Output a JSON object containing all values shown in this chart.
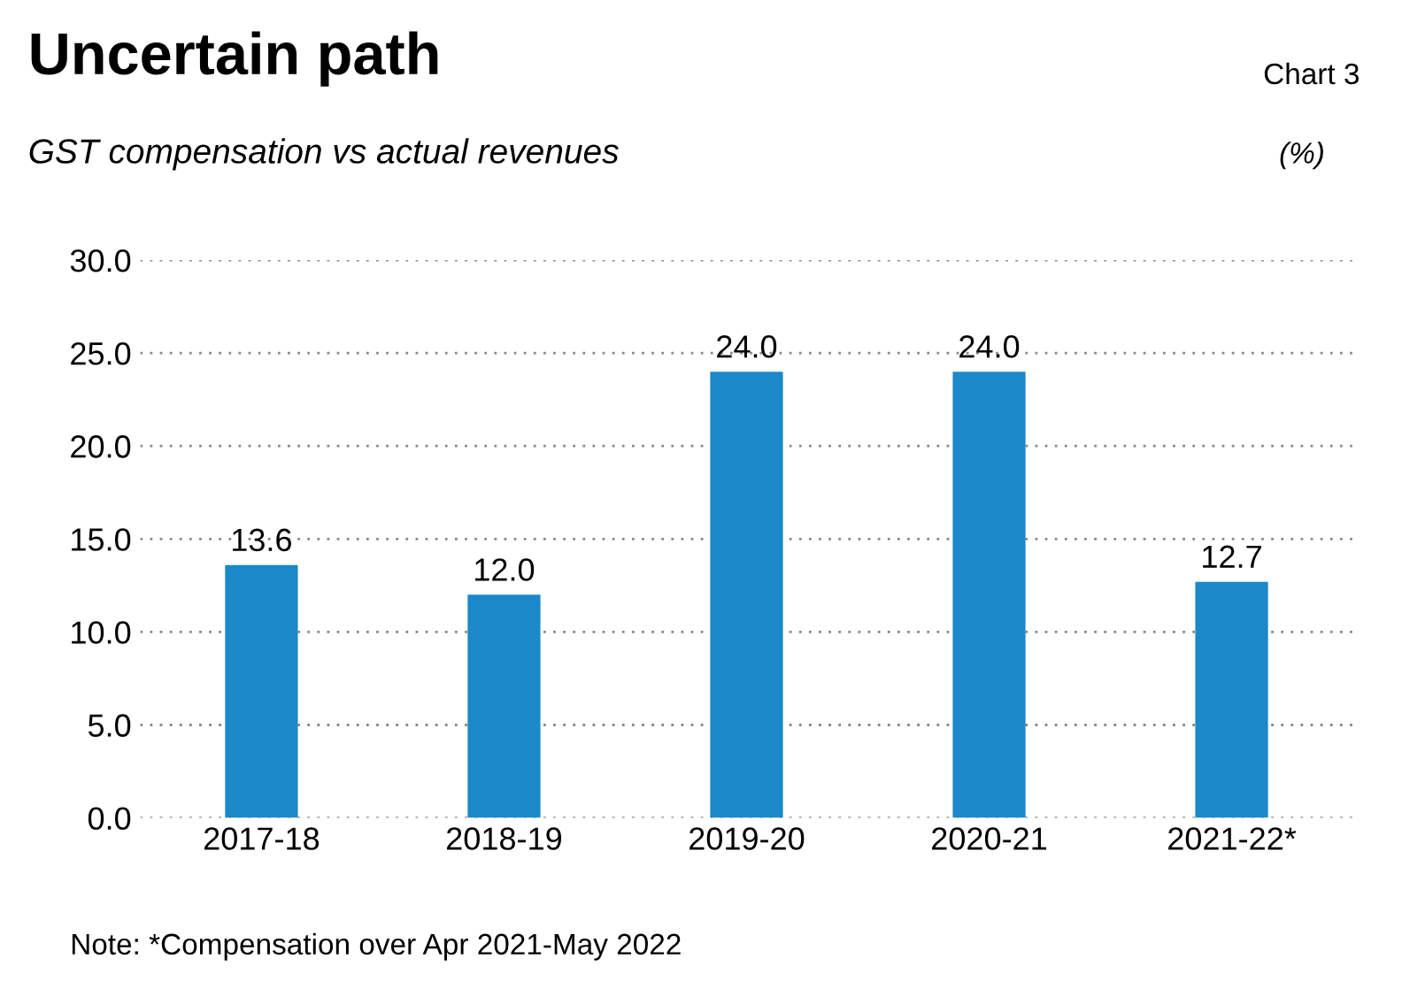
{
  "chart_data": {
    "type": "bar",
    "title": "Uncertain path",
    "subtitle": "GST compensation vs actual revenues",
    "ylabel": "(%)",
    "annotations": [
      "Chart 3",
      "Note: *Compensation over Apr 2021-May 2022"
    ],
    "categories": [
      "2017-18",
      "2018-19",
      "2019-20",
      "2020-21",
      "2021-22*"
    ],
    "values": [
      13.6,
      12.0,
      24.0,
      24.0,
      12.7
    ],
    "value_labels": [
      "13.6",
      "12.0",
      "24.0",
      "24.0",
      "12.7"
    ],
    "color": "#1b88c9",
    "ylim": [
      0,
      30
    ],
    "yticks": [
      {
        "value": 0,
        "label": "0.0"
      },
      {
        "value": 5,
        "label": "5.0"
      },
      {
        "value": 10,
        "label": "10.0"
      },
      {
        "value": 15,
        "label": "15.0"
      },
      {
        "value": 20,
        "label": "20.0"
      },
      {
        "value": 25,
        "label": "25.0"
      },
      {
        "value": 30,
        "label": "30.0"
      }
    ],
    "grid": "y"
  }
}
